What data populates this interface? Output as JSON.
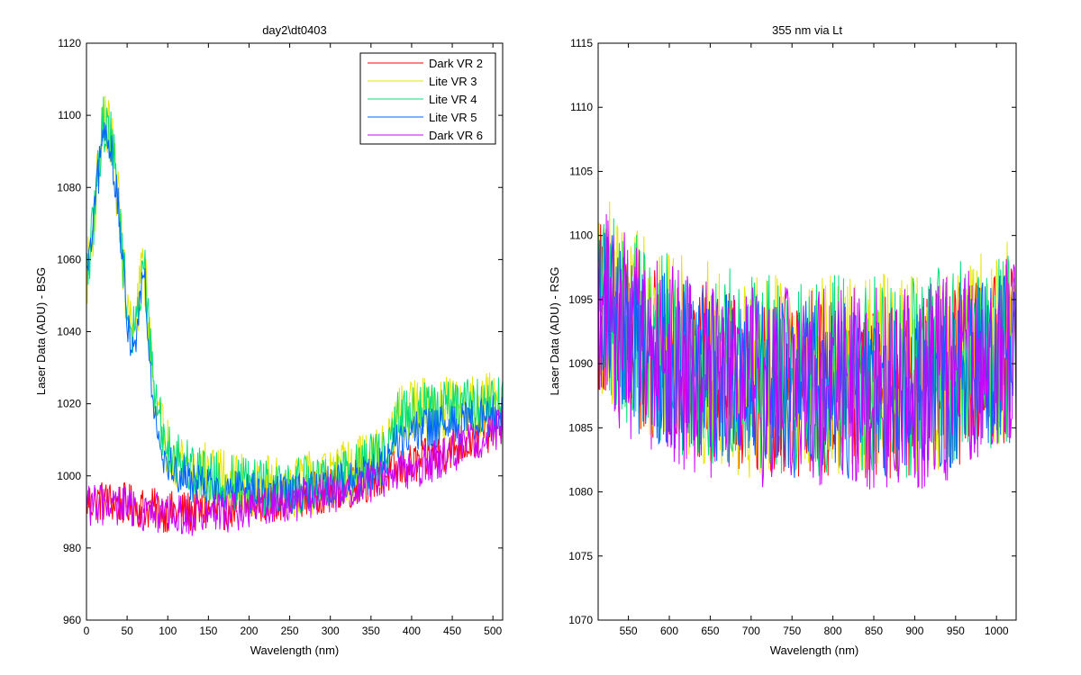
{
  "chart_data": [
    {
      "type": "line",
      "title": "day2\\dt0403",
      "xlabel": "Wavelength (nm)",
      "ylabel": "Laser Data (ADU) - BSG",
      "xlim": [
        0,
        512
      ],
      "ylim": [
        960,
        1120
      ],
      "xticks": [
        0,
        50,
        100,
        150,
        200,
        250,
        300,
        350,
        400,
        450,
        500
      ],
      "yticks": [
        960,
        980,
        1000,
        1020,
        1040,
        1060,
        1080,
        1100,
        1120
      ],
      "grid": false,
      "legend_position": "top-right",
      "legend": [
        "Dark VR 2",
        "Lite VR 3",
        "Lite VR 4",
        "Lite VR 5",
        "Dark VR 6"
      ],
      "series": [
        {
          "name": "Dark VR 2",
          "color": "#ff0000",
          "x": [
            0,
            25,
            50,
            75,
            100,
            125,
            150,
            175,
            200,
            225,
            250,
            275,
            300,
            325,
            350,
            375,
            400,
            425,
            450,
            475,
            500,
            512
          ],
          "y": [
            993,
            993,
            992,
            991,
            990,
            990,
            990,
            991,
            992,
            993,
            994,
            995,
            996,
            997,
            999,
            1001,
            1003,
            1005,
            1008,
            1010,
            1013,
            1015
          ],
          "noise": 6
        },
        {
          "name": "Lite VR 3",
          "color": "#e6e600",
          "x": [
            0,
            5,
            20,
            30,
            40,
            50,
            60,
            70,
            80,
            90,
            100,
            125,
            150,
            175,
            200,
            250,
            300,
            350,
            370,
            380,
            400,
            450,
            500,
            512
          ],
          "y": [
            1055,
            1062,
            1098,
            1095,
            1075,
            1045,
            1038,
            1062,
            1030,
            1015,
            1008,
            1003,
            1000,
            998,
            997,
            997,
            999,
            1004,
            1006,
            1015,
            1018,
            1019,
            1020,
            1020
          ],
          "noise": 9
        },
        {
          "name": "Lite VR 4",
          "color": "#00e07a",
          "x": [
            0,
            5,
            20,
            30,
            40,
            50,
            60,
            70,
            80,
            90,
            100,
            125,
            150,
            175,
            200,
            250,
            300,
            350,
            370,
            380,
            400,
            450,
            500,
            512
          ],
          "y": [
            1055,
            1062,
            1098,
            1095,
            1075,
            1045,
            1038,
            1062,
            1030,
            1015,
            1008,
            1003,
            1000,
            998,
            997,
            997,
            999,
            1004,
            1006,
            1015,
            1018,
            1019,
            1020,
            1020
          ],
          "noise": 8
        },
        {
          "name": "Lite VR 5",
          "color": "#0066ff",
          "x": [
            0,
            5,
            20,
            30,
            40,
            50,
            60,
            70,
            80,
            90,
            100,
            125,
            150,
            175,
            200,
            250,
            300,
            350,
            370,
            380,
            400,
            450,
            500,
            512
          ],
          "y": [
            1055,
            1062,
            1095,
            1092,
            1072,
            1042,
            1035,
            1060,
            1026,
            1010,
            1003,
            999,
            997,
            996,
            995,
            995,
            997,
            1001,
            1003,
            1009,
            1012,
            1014,
            1017,
            1018
          ],
          "noise": 6
        },
        {
          "name": "Dark VR 6",
          "color": "#cc00ff",
          "x": [
            0,
            25,
            50,
            75,
            100,
            125,
            150,
            175,
            200,
            225,
            250,
            275,
            300,
            325,
            350,
            375,
            400,
            425,
            450,
            475,
            500,
            512
          ],
          "y": [
            992,
            992,
            991,
            990,
            989,
            989,
            989,
            990,
            991,
            992,
            993,
            994,
            995,
            996,
            998,
            1000,
            1002,
            1004,
            1007,
            1009,
            1012,
            1014
          ],
          "noise": 6
        }
      ]
    },
    {
      "type": "line",
      "title": "355 nm via Lt",
      "xlabel": "Wavelength (nm)",
      "ylabel": "Laser Data (ADU) - RSG",
      "xlim": [
        513,
        1024
      ],
      "ylim": [
        1070,
        1115
      ],
      "xticks": [
        550,
        600,
        650,
        700,
        750,
        800,
        850,
        900,
        950,
        1000
      ],
      "yticks": [
        1070,
        1075,
        1080,
        1085,
        1090,
        1095,
        1100,
        1105,
        1110,
        1115
      ],
      "grid": false,
      "series": [
        {
          "name": "Dark VR 2",
          "color": "#ff0000",
          "x": [
            513,
            550,
            600,
            650,
            700,
            750,
            800,
            850,
            900,
            950,
            1000,
            1024
          ],
          "y": [
            1095,
            1092,
            1090,
            1089,
            1088,
            1088,
            1088,
            1088,
            1088,
            1089,
            1090,
            1091
          ],
          "noise": 7
        },
        {
          "name": "Lite VR 3",
          "color": "#e6e600",
          "x": [
            513,
            550,
            600,
            650,
            700,
            750,
            800,
            850,
            900,
            950,
            1000,
            1024
          ],
          "y": [
            1096,
            1093,
            1091,
            1090,
            1089,
            1089,
            1089,
            1089,
            1089,
            1090,
            1091,
            1092
          ],
          "noise": 8
        },
        {
          "name": "Lite VR 4",
          "color": "#00e07a",
          "x": [
            513,
            550,
            600,
            650,
            700,
            750,
            800,
            850,
            900,
            950,
            1000,
            1024
          ],
          "y": [
            1096,
            1093,
            1091,
            1090,
            1089,
            1089,
            1089,
            1089,
            1089,
            1090,
            1091,
            1092
          ],
          "noise": 8
        },
        {
          "name": "Lite VR 5",
          "color": "#0066ff",
          "x": [
            513,
            550,
            600,
            650,
            700,
            750,
            800,
            850,
            900,
            950,
            1000,
            1024
          ],
          "y": [
            1095,
            1092,
            1090,
            1089,
            1088,
            1088,
            1088,
            1088,
            1088,
            1089,
            1090,
            1091
          ],
          "noise": 7
        },
        {
          "name": "Dark VR 6",
          "color": "#cc00ff",
          "x": [
            513,
            550,
            600,
            650,
            700,
            750,
            800,
            850,
            900,
            950,
            1000,
            1024
          ],
          "y": [
            1095,
            1092,
            1090,
            1089,
            1088,
            1088,
            1088,
            1088,
            1088,
            1089,
            1090,
            1092
          ],
          "noise": 8
        }
      ]
    }
  ]
}
